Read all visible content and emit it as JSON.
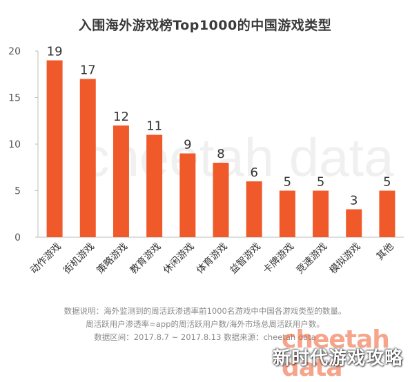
{
  "chart_data": {
    "type": "bar",
    "title": "入围海外游戏榜Top1000的中国游戏类型",
    "categories": [
      "动作游戏",
      "街机游戏",
      "策略游戏",
      "教育游戏",
      "休闲游戏",
      "体育游戏",
      "益智游戏",
      "卡牌游戏",
      "竞速游戏",
      "模拟游戏",
      "其他"
    ],
    "values": [
      19,
      17,
      12,
      11,
      9,
      8,
      6,
      5,
      5,
      3,
      5
    ],
    "ylim": [
      0,
      20
    ],
    "yticks": [
      0,
      5,
      10,
      15,
      20
    ],
    "grid": false,
    "bar_color": "#F05A2B"
  },
  "notes": {
    "line1": "数据说明：海外监测到的周活跃渗透率前1000名游戏中中国各游戏类型的数量。",
    "line2": "周活跃用户渗透率=app的周活跃用户数/海外市场总周活跃用户数。",
    "line3": "数据区间：2017.8.7 ~ 2017.8.13 数据来源：cheetah data"
  },
  "watermark": {
    "text": "cheetah data"
  },
  "overlay": {
    "caption": "新时代游戏攻略"
  }
}
